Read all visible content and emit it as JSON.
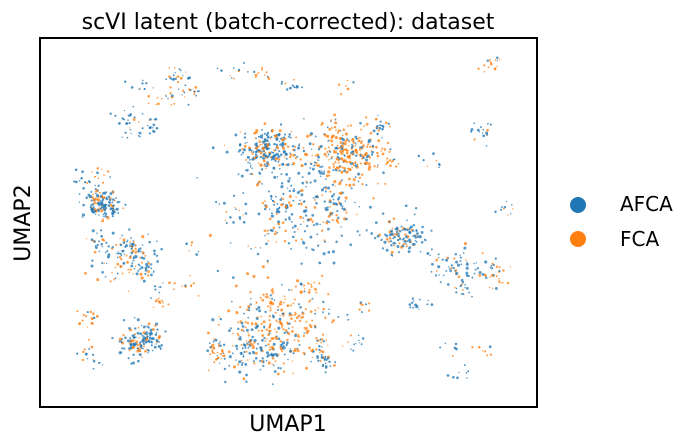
{
  "chart_data": {
    "type": "scatter",
    "title": "scVI latent (batch-corrected): dataset",
    "xlabel": "UMAP1",
    "ylabel": "UMAP2",
    "grid": false,
    "ticks": false,
    "legend": {
      "placement": "right-outside"
    },
    "series": [
      {
        "name": "AFCA",
        "color": "#1f77b4"
      },
      {
        "name": "FCA",
        "color": "#ff7f0e"
      }
    ],
    "clusters": [
      {
        "x": 0.62,
        "y": 0.69,
        "r": 0.07,
        "series": "FCA",
        "density": "high"
      },
      {
        "x": 0.52,
        "y": 0.55,
        "r": 0.12,
        "series": "AFCA",
        "density": "high"
      },
      {
        "x": 0.46,
        "y": 0.7,
        "r": 0.05,
        "series": "AFCA",
        "density": "high"
      },
      {
        "x": 0.48,
        "y": 0.23,
        "r": 0.09,
        "series": "FCA",
        "density": "high"
      },
      {
        "x": 0.43,
        "y": 0.15,
        "r": 0.06,
        "series": "AFCA",
        "density": "medium"
      },
      {
        "x": 0.18,
        "y": 0.4,
        "r": 0.06,
        "series": "AFCA",
        "density": "medium"
      },
      {
        "x": 0.2,
        "y": 0.18,
        "r": 0.04,
        "series": "AFCA",
        "density": "medium"
      },
      {
        "x": 0.12,
        "y": 0.55,
        "r": 0.03,
        "series": "AFCA",
        "density": "medium"
      },
      {
        "x": 0.73,
        "y": 0.46,
        "r": 0.04,
        "series": "AFCA",
        "density": "medium"
      },
      {
        "x": 0.85,
        "y": 0.37,
        "r": 0.05,
        "series": "AFCA",
        "density": "low"
      }
    ]
  }
}
